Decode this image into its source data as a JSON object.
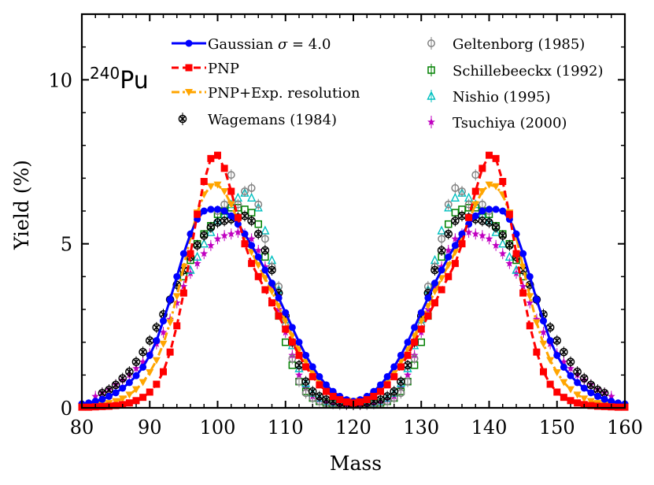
{
  "chart_data": {
    "type": "line",
    "title": "",
    "annotation": {
      "mass_number": "240",
      "element": "Pu"
    },
    "xlabel": "Mass",
    "ylabel": "Yield (%)",
    "xlim": [
      80,
      160
    ],
    "ylim": [
      0,
      12
    ],
    "xticks": [
      80,
      90,
      100,
      110,
      120,
      130,
      140,
      150,
      160
    ],
    "yticks": [
      0,
      5,
      10
    ],
    "x": [
      80,
      81,
      82,
      83,
      84,
      85,
      86,
      87,
      88,
      89,
      90,
      91,
      92,
      93,
      94,
      95,
      96,
      97,
      98,
      99,
      100,
      101,
      102,
      103,
      104,
      105,
      106,
      107,
      108,
      109,
      110,
      111,
      112,
      113,
      114,
      115,
      116,
      117,
      118,
      119,
      120,
      121,
      122,
      123,
      124,
      125,
      126,
      127,
      128,
      129,
      130,
      131,
      132,
      133,
      134,
      135,
      136,
      137,
      138,
      139,
      140,
      141,
      142,
      143,
      144,
      145,
      146,
      147,
      148,
      149,
      150,
      151,
      152,
      153,
      154,
      155,
      156,
      157,
      158,
      159,
      160
    ],
    "series": [
      {
        "name": "Gaussian σ = 4.0",
        "color": "#0000ff",
        "marker": "circle",
        "line": "solid",
        "values": [
          0.12,
          0.15,
          0.2,
          0.26,
          0.35,
          0.46,
          0.6,
          0.77,
          0.98,
          1.24,
          1.6,
          2.05,
          2.65,
          3.3,
          4.0,
          4.7,
          5.3,
          5.75,
          6.0,
          6.05,
          6.05,
          6.0,
          5.85,
          5.6,
          5.3,
          4.95,
          4.6,
          4.2,
          3.8,
          3.35,
          2.9,
          2.45,
          2.0,
          1.6,
          1.25,
          0.95,
          0.7,
          0.5,
          0.35,
          0.25,
          0.2,
          0.25,
          0.35,
          0.5,
          0.7,
          0.95,
          1.25,
          1.6,
          2.0,
          2.45,
          2.9,
          3.35,
          3.8,
          4.2,
          4.6,
          4.95,
          5.3,
          5.6,
          5.85,
          6.0,
          6.05,
          6.05,
          6.0,
          5.75,
          5.3,
          4.7,
          4.0,
          3.3,
          2.65,
          2.05,
          1.6,
          1.24,
          0.98,
          0.77,
          0.6,
          0.46,
          0.35,
          0.26,
          0.2,
          0.15,
          0.12
        ]
      },
      {
        "name": "PNP",
        "color": "#ff0000",
        "marker": "square",
        "line": "dashed",
        "values": [
          0.02,
          0.02,
          0.03,
          0.04,
          0.05,
          0.07,
          0.1,
          0.15,
          0.22,
          0.32,
          0.48,
          0.72,
          1.1,
          1.7,
          2.5,
          3.5,
          4.7,
          5.9,
          6.9,
          7.6,
          7.7,
          7.3,
          6.6,
          5.8,
          5.0,
          4.4,
          4.0,
          3.6,
          3.2,
          2.8,
          2.4,
          2.0,
          1.6,
          1.25,
          0.95,
          0.7,
          0.5,
          0.35,
          0.25,
          0.18,
          0.15,
          0.18,
          0.25,
          0.35,
          0.5,
          0.7,
          0.95,
          1.25,
          1.6,
          2.0,
          2.4,
          2.8,
          3.2,
          3.6,
          4.0,
          4.4,
          5.0,
          5.8,
          6.6,
          7.3,
          7.7,
          7.6,
          6.9,
          5.9,
          4.7,
          3.5,
          2.5,
          1.7,
          1.1,
          0.72,
          0.48,
          0.32,
          0.22,
          0.15,
          0.1,
          0.07,
          0.05,
          0.04,
          0.03,
          0.02,
          0.02
        ]
      },
      {
        "name": "PNP+Exp. resolution",
        "color": "#ffa500",
        "marker": "triangle-down",
        "line": "dashdot",
        "values": [
          0.05,
          0.06,
          0.08,
          0.1,
          0.14,
          0.2,
          0.28,
          0.4,
          0.56,
          0.78,
          1.08,
          1.45,
          1.95,
          2.6,
          3.4,
          4.3,
          5.2,
          5.95,
          6.5,
          6.75,
          6.8,
          6.6,
          6.2,
          5.7,
          5.2,
          4.75,
          4.35,
          3.95,
          3.55,
          3.1,
          2.65,
          2.2,
          1.78,
          1.4,
          1.05,
          0.78,
          0.56,
          0.4,
          0.28,
          0.22,
          0.2,
          0.22,
          0.28,
          0.4,
          0.56,
          0.78,
          1.05,
          1.4,
          1.78,
          2.2,
          2.65,
          3.1,
          3.55,
          3.95,
          4.35,
          4.75,
          5.2,
          5.7,
          6.2,
          6.6,
          6.8,
          6.75,
          6.5,
          5.95,
          5.2,
          4.3,
          3.4,
          2.6,
          1.95,
          1.45,
          1.08,
          0.78,
          0.56,
          0.4,
          0.28,
          0.2,
          0.14,
          0.1,
          0.08,
          0.06,
          0.05
        ]
      },
      {
        "name": "Wagemans (1984)",
        "color": "#000000",
        "marker": "x-circle",
        "line": "none",
        "x": [
          83,
          84,
          85,
          86,
          87,
          88,
          89,
          90,
          91,
          92,
          93,
          94,
          95,
          96,
          97,
          98,
          99,
          100,
          101,
          102,
          103,
          104,
          105,
          106,
          107,
          108,
          109,
          110,
          111,
          112,
          113,
          114,
          115,
          116,
          117,
          118,
          119,
          120,
          121,
          122,
          123,
          124,
          125,
          126,
          127,
          128,
          129,
          130,
          131,
          132,
          133,
          134,
          135,
          136,
          137,
          138,
          139,
          140,
          141,
          142,
          143,
          144,
          145,
          146,
          147,
          148,
          149,
          150,
          151,
          152,
          153,
          154,
          155,
          156,
          157
        ],
        "values": [
          0.45,
          0.55,
          0.7,
          0.9,
          1.1,
          1.4,
          1.7,
          2.05,
          2.45,
          2.85,
          3.3,
          3.75,
          4.2,
          4.6,
          4.95,
          5.25,
          5.5,
          5.65,
          5.7,
          5.75,
          5.8,
          5.85,
          5.7,
          5.3,
          4.8,
          4.2,
          3.5,
          2.8,
          2.0,
          1.3,
          0.8,
          0.5,
          0.35,
          0.25,
          0.2,
          0.15,
          0.12,
          0.1,
          0.12,
          0.15,
          0.2,
          0.25,
          0.35,
          0.5,
          0.8,
          1.3,
          2.0,
          2.8,
          3.5,
          4.2,
          4.8,
          5.3,
          5.7,
          5.85,
          5.8,
          5.75,
          5.7,
          5.65,
          5.5,
          5.25,
          4.95,
          4.6,
          4.2,
          3.75,
          3.3,
          2.85,
          2.45,
          2.05,
          1.7,
          1.4,
          1.1,
          0.9,
          0.7,
          0.55,
          0.45
        ]
      },
      {
        "name": "Geltenborg (1985)",
        "color": "#808080",
        "marker": "open-circle",
        "line": "none",
        "x": [
          100,
          101,
          102,
          103,
          104,
          105,
          106,
          107,
          108,
          109,
          110,
          111,
          112,
          113,
          114,
          115,
          116,
          117,
          118,
          119,
          120,
          121,
          122,
          123,
          124,
          125,
          126,
          127,
          128,
          129,
          130,
          131,
          132,
          133,
          134,
          135,
          136,
          137,
          138,
          139,
          140
        ],
        "values": [
          6.0,
          6.2,
          7.1,
          6.2,
          6.6,
          6.7,
          6.2,
          5.15,
          4.3,
          3.7,
          2.5,
          1.5,
          0.8,
          0.45,
          0.3,
          0.2,
          0.15,
          0.12,
          0.1,
          0.1,
          0.1,
          0.1,
          0.1,
          0.12,
          0.15,
          0.2,
          0.3,
          0.45,
          0.8,
          1.5,
          2.5,
          3.7,
          4.3,
          5.15,
          6.2,
          6.7,
          6.6,
          6.2,
          7.1,
          6.2,
          6.0
        ]
      },
      {
        "name": "Schillebeeckx (1992)",
        "color": "#008000",
        "marker": "open-square",
        "line": "none",
        "x": [
          95,
          96,
          97,
          98,
          99,
          100,
          101,
          102,
          103,
          104,
          105,
          106,
          107,
          108,
          109,
          110,
          111,
          112,
          113,
          114,
          115,
          116,
          117,
          118,
          119,
          120,
          121,
          122,
          123,
          124,
          125,
          126,
          127,
          128,
          129,
          130,
          131,
          132,
          133,
          134,
          135,
          136,
          137,
          138,
          139,
          140,
          141,
          142,
          143,
          144,
          145
        ],
        "values": [
          4.0,
          4.5,
          5.0,
          5.3,
          5.55,
          5.9,
          6.0,
          6.1,
          6.1,
          6.05,
          5.95,
          5.6,
          4.6,
          3.7,
          2.8,
          2.0,
          1.3,
          0.8,
          0.5,
          0.3,
          0.2,
          0.15,
          0.12,
          0.1,
          0.1,
          0.1,
          0.1,
          0.1,
          0.12,
          0.15,
          0.2,
          0.3,
          0.5,
          0.8,
          1.3,
          2.0,
          2.8,
          3.7,
          4.6,
          5.6,
          5.95,
          6.05,
          6.1,
          6.1,
          6.0,
          5.9,
          5.55,
          5.3,
          5.0,
          4.5,
          4.0
        ]
      },
      {
        "name": "Nishio (1995)",
        "color": "#00c0c0",
        "marker": "open-triangle",
        "line": "none",
        "x": [
          96,
          97,
          98,
          99,
          100,
          101,
          102,
          103,
          104,
          105,
          106,
          107,
          108,
          109,
          110,
          111,
          112,
          113,
          114,
          115,
          116,
          117,
          118,
          119,
          120,
          121,
          122,
          123,
          124,
          125,
          126,
          127,
          128,
          129,
          130,
          131,
          132,
          133,
          134,
          135,
          136,
          137,
          138,
          139,
          140,
          141,
          142,
          143,
          144
        ],
        "values": [
          4.2,
          4.6,
          5.0,
          5.35,
          5.7,
          5.9,
          6.2,
          6.4,
          6.55,
          6.4,
          6.1,
          5.4,
          4.5,
          3.6,
          2.7,
          1.9,
          1.2,
          0.75,
          0.45,
          0.3,
          0.2,
          0.15,
          0.12,
          0.1,
          0.1,
          0.1,
          0.12,
          0.15,
          0.2,
          0.3,
          0.45,
          0.75,
          1.2,
          1.9,
          2.7,
          3.6,
          4.5,
          5.4,
          6.1,
          6.4,
          6.55,
          6.4,
          6.2,
          5.9,
          5.7,
          5.35,
          5.0,
          4.6,
          4.2
        ]
      },
      {
        "name": "Tsuchiya (2000)",
        "color": "#c000c0",
        "marker": "star",
        "line": "none",
        "x": [
          82,
          83,
          84,
          85,
          86,
          87,
          88,
          89,
          90,
          91,
          92,
          93,
          94,
          95,
          96,
          97,
          98,
          99,
          100,
          101,
          102,
          103,
          104,
          105,
          106,
          107,
          108,
          109,
          110,
          111,
          112,
          113,
          114,
          115,
          116,
          117,
          118,
          119,
          120,
          121,
          122,
          123,
          124,
          125,
          126,
          127,
          128,
          129,
          130,
          131,
          132,
          133,
          134,
          135,
          136,
          137,
          138,
          139,
          140,
          141,
          142,
          143,
          144,
          145,
          146,
          147,
          148,
          149,
          150,
          151,
          152,
          153,
          154,
          155,
          156,
          157,
          158
        ],
        "values": [
          0.35,
          0.45,
          0.55,
          0.7,
          0.85,
          1.0,
          1.2,
          1.4,
          1.65,
          1.95,
          2.3,
          2.7,
          3.2,
          3.7,
          4.1,
          4.4,
          4.7,
          4.95,
          5.15,
          5.25,
          5.3,
          5.35,
          5.3,
          5.15,
          4.8,
          4.3,
          3.7,
          3.0,
          2.3,
          1.6,
          1.0,
          0.6,
          0.35,
          0.25,
          0.2,
          0.15,
          0.12,
          0.1,
          0.1,
          0.1,
          0.12,
          0.15,
          0.2,
          0.25,
          0.35,
          0.6,
          1.0,
          1.6,
          2.3,
          3.0,
          3.7,
          4.3,
          4.8,
          5.15,
          5.3,
          5.35,
          5.3,
          5.25,
          5.15,
          4.95,
          4.7,
          4.4,
          4.1,
          3.7,
          3.2,
          2.7,
          2.3,
          1.95,
          1.65,
          1.4,
          1.2,
          1.0,
          0.85,
          0.7,
          0.55,
          0.45,
          0.35
        ]
      }
    ],
    "legend": {
      "placement": "top",
      "left_column": [
        "Gaussian",
        "PNP",
        "PNP+Exp. resolution",
        "Wagemans (1984)"
      ],
      "right_column": [
        "Geltenborg (1985)",
        "Schillebeeckx (1992)",
        "Nishio (1995)",
        "Tsuchiya (2000)"
      ],
      "gaussian_prefix": "Gaussian ",
      "gaussian_sigma": "σ",
      "gaussian_suffix": " = 4.0"
    }
  }
}
